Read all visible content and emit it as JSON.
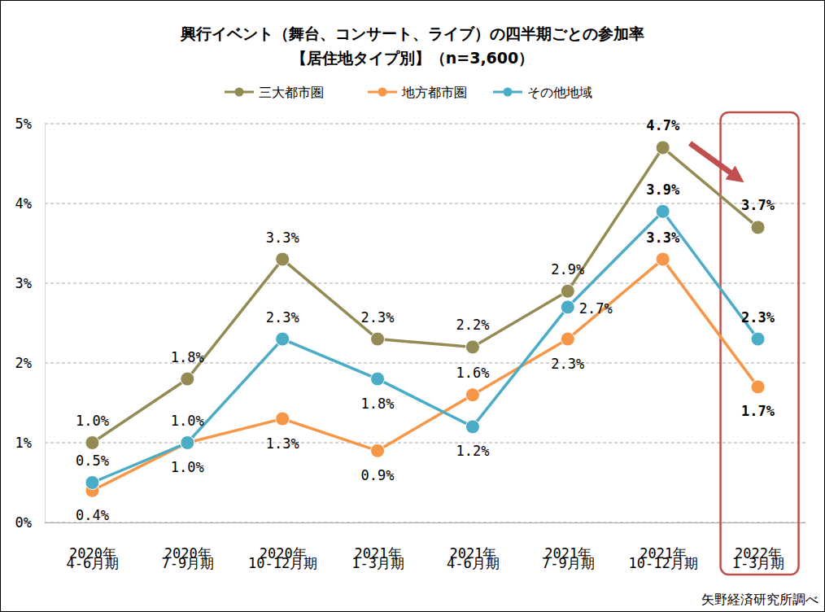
{
  "chart_data": {
    "type": "line",
    "title": "興行イベント（舞台、コンサート、ライブ）の四半期ごとの参加率",
    "subtitle": "【居住地タイプ別】（n=3,600）",
    "source": "矢野経済研究所調べ",
    "categories": [
      "2020年\n4-6月期",
      "2020年\n7-9月期",
      "2020年\n10-12月期",
      "2021年\n1-3月期",
      "2021年\n4-6月期",
      "2021年\n7-9月期",
      "2021年\n10-12月期",
      "2022年\n1-3月期"
    ],
    "series": [
      {
        "name": "三大都市圏",
        "color": "#948a54",
        "values": [
          1.0,
          1.8,
          3.3,
          2.3,
          2.2,
          2.9,
          4.7,
          3.7
        ],
        "value_labels": [
          "1.0%",
          "1.8%",
          "3.3%",
          "2.3%",
          "2.2%",
          "2.9%",
          "4.7%",
          "3.7%"
        ]
      },
      {
        "name": "地方都市圏",
        "color": "#f79646",
        "values": [
          0.4,
          1.0,
          1.3,
          0.9,
          1.6,
          2.3,
          3.3,
          1.7
        ],
        "value_labels": [
          "0.4%",
          "1.0%",
          "1.3%",
          "0.9%",
          "1.6%",
          "2.3%",
          "3.3%",
          "1.7%"
        ]
      },
      {
        "name": "その他地域",
        "color": "#4bacc6",
        "values": [
          0.5,
          1.0,
          2.3,
          1.8,
          1.2,
          2.7,
          3.9,
          2.3
        ],
        "value_labels": [
          "0.5%",
          "1.0%",
          "2.3%",
          "1.8%",
          "1.2%",
          "2.7%",
          "3.9%",
          "2.3%"
        ]
      }
    ],
    "ylim": [
      0,
      5
    ],
    "yticks": [
      {
        "value": 0,
        "label": "0%"
      },
      {
        "value": 1,
        "label": "1%"
      },
      {
        "value": 2,
        "label": "2%"
      },
      {
        "value": 3,
        "label": "3%"
      },
      {
        "value": 4,
        "label": "4%"
      },
      {
        "value": 5,
        "label": "5%"
      }
    ],
    "grid": true,
    "legend": "top",
    "data_labels": true,
    "marker": "circle"
  }
}
